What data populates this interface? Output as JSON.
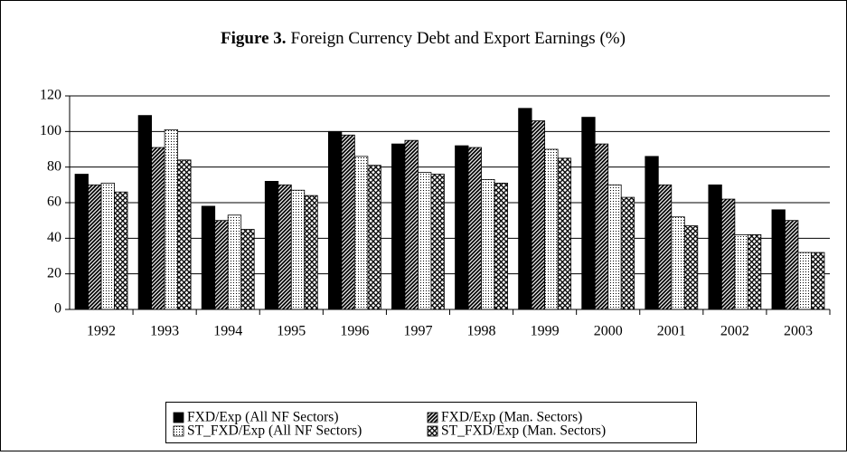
{
  "chart_data": {
    "type": "bar",
    "title_label": "Figure 3.",
    "title": "Foreign Currency Debt and Export Earnings (%)",
    "categories": [
      "1992",
      "1993",
      "1994",
      "1995",
      "1996",
      "1997",
      "1998",
      "1999",
      "2000",
      "2001",
      "2002",
      "2003"
    ],
    "series": [
      {
        "name": "FXD/Exp (All NF Sectors)",
        "color": "#000000",
        "pattern": "solid",
        "values": [
          76,
          109,
          58,
          72,
          100,
          93,
          92,
          113,
          108,
          86,
          70,
          56
        ]
      },
      {
        "name": "FXD/Exp (Man. Sectors)",
        "color": "#000000",
        "pattern": "diagonal",
        "values": [
          70,
          91,
          50,
          70,
          98,
          95,
          91,
          106,
          93,
          70,
          62,
          50
        ]
      },
      {
        "name": "ST_FXD/Exp (All NF Sectors)",
        "color": "#000000",
        "pattern": "dots",
        "values": [
          71,
          101,
          53,
          67,
          86,
          77,
          73,
          90,
          70,
          52,
          42,
          32
        ]
      },
      {
        "name": "ST_FXD/Exp (Man. Sectors)",
        "color": "#000000",
        "pattern": "crosshatch",
        "values": [
          66,
          84,
          45,
          64,
          81,
          76,
          71,
          85,
          63,
          47,
          42,
          32
        ]
      }
    ],
    "ylim": [
      0,
      120
    ],
    "yticks": [
      0,
      20,
      40,
      60,
      80,
      100,
      120
    ],
    "grid": true,
    "legend": "bottom"
  }
}
